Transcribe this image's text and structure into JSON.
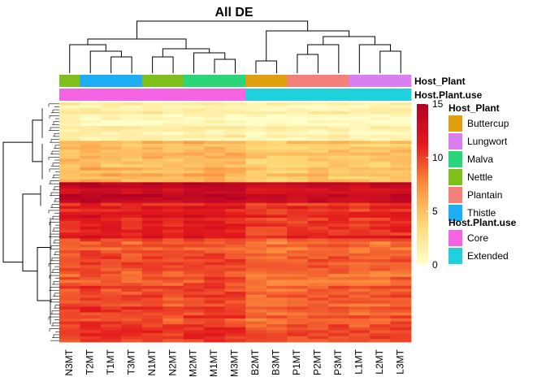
{
  "chart_data": {
    "type": "heatmap",
    "title": "All DE",
    "columns": [
      "N3MT",
      "T2MT",
      "T1MT",
      "T3MT",
      "N1MT",
      "N2MT",
      "M2MT",
      "M1MT",
      "M3MT",
      "B2MT",
      "B3MT",
      "P1MT",
      "P2MT",
      "P3MT",
      "L1MT",
      "L2MT",
      "L3MT"
    ],
    "annotation_rows": [
      {
        "name": "Host_Plant",
        "values": [
          "Nettle",
          "Thistle",
          "Thistle",
          "Thistle",
          "Nettle",
          "Nettle",
          "Malva",
          "Malva",
          "Malva",
          "Buttercup",
          "Buttercup",
          "Plantain",
          "Plantain",
          "Plantain",
          "Lungwort",
          "Lungwort",
          "Lungwort"
        ]
      },
      {
        "name": "Host.Plant.use",
        "values": [
          "Core",
          "Core",
          "Core",
          "Core",
          "Core",
          "Core",
          "Core",
          "Core",
          "Core",
          "Extended",
          "Extended",
          "Extended",
          "Extended",
          "Extended",
          "Extended",
          "Extended",
          "Extended"
        ]
      }
    ],
    "legends": [
      {
        "title": "Host_Plant",
        "items": [
          {
            "label": "Buttercup",
            "color": "#e0a010"
          },
          {
            "label": "Lungwort",
            "color": "#d97ff0"
          },
          {
            "label": "Malva",
            "color": "#2bd67b"
          },
          {
            "label": "Nettle",
            "color": "#7fbf1a"
          },
          {
            "label": "Plantain",
            "color": "#f4807a"
          },
          {
            "label": "Thistle",
            "color": "#1eaef5"
          }
        ]
      },
      {
        "title": "Host.Plant.use",
        "items": [
          {
            "label": "Core",
            "color": "#f564e3"
          },
          {
            "label": "Extended",
            "color": "#1fd1dc"
          }
        ]
      }
    ],
    "color_scale": {
      "ticks": [
        0,
        5,
        10,
        15
      ],
      "range": [
        0,
        15
      ],
      "colors": [
        "#ffffcc",
        "#fed976",
        "#fd8d3c",
        "#e31a1c",
        "#b10026"
      ]
    },
    "row_blocks": [
      {
        "rows": 13,
        "mean": 1.2
      },
      {
        "rows": 14,
        "mean": 5.0
      },
      {
        "rows": 7,
        "mean": 13.2
      },
      {
        "rows": 12,
        "mean": 10.8
      },
      {
        "rows": 17,
        "mean": 8.9
      },
      {
        "rows": 18,
        "mean": 9.6
      }
    ],
    "column_offsets": [
      0.3,
      0.9,
      0.5,
      0.2,
      0.6,
      0.1,
      0.7,
      0.8,
      0.6,
      -0.6,
      -0.8,
      -0.4,
      -0.2,
      -0.1,
      -0.5,
      -0.3,
      0.1
    ]
  }
}
